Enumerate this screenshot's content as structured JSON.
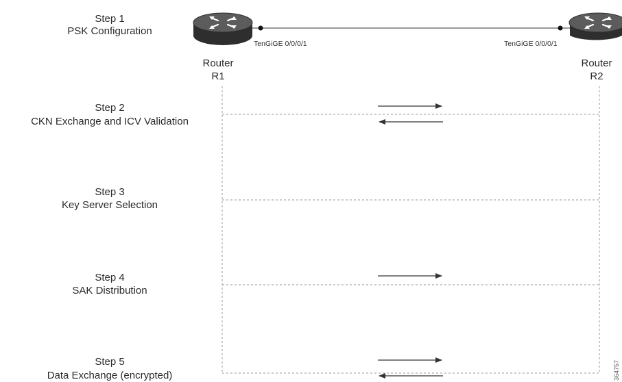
{
  "steps": [
    {
      "label": "Step 1",
      "title": "PSK Configuration"
    },
    {
      "label": "Step 2",
      "title": "CKN Exchange and ICV Validation"
    },
    {
      "label": "Step 3",
      "title": "Key Server Selection"
    },
    {
      "label": "Step 4",
      "title": "SAK Distribution"
    },
    {
      "label": "Step 5",
      "title": "Data Exchange (encrypted)"
    }
  ],
  "routers": {
    "r1": {
      "line1": "Router",
      "line2": "R1",
      "interface": "TenGiGE 0/0/0/1"
    },
    "r2": {
      "line1": "Router",
      "line2": "R2",
      "interface": "TenGiGE 0/0/0/1"
    }
  },
  "figure_id": "364757",
  "colors": {
    "router_body": "#3a3a3a",
    "router_top": "#5a5a5a",
    "lines": "#888888",
    "arrows": "#333333"
  }
}
